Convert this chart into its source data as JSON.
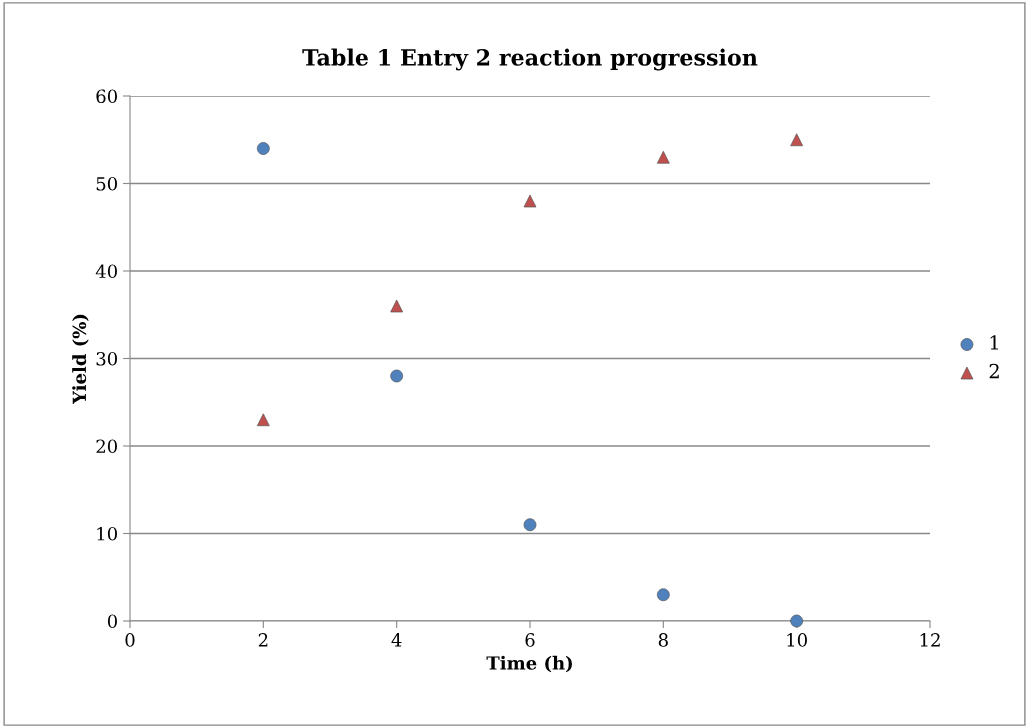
{
  "chart_data": {
    "type": "scatter",
    "title": "Table 1 Entry 2 reaction progression",
    "xlabel": "Time (h)",
    "ylabel": "Yield (%)",
    "series": [
      {
        "name": "1",
        "color": "#4f81bd",
        "marker": "circle",
        "x": [
          2,
          4,
          6,
          8,
          10
        ],
        "values": [
          54,
          28,
          11,
          3,
          0
        ]
      },
      {
        "name": "2",
        "color": "#c0504d",
        "marker": "triangle",
        "x": [
          2,
          4,
          6,
          8,
          10
        ],
        "values": [
          23,
          36,
          48,
          53,
          55
        ]
      }
    ],
    "xlim": [
      0,
      12
    ],
    "xticks": [
      0,
      2,
      4,
      6,
      8,
      10,
      12
    ],
    "ylim": [
      0,
      60
    ],
    "yticks": [
      0,
      10,
      20,
      30,
      40,
      50,
      60
    ],
    "grid": "y",
    "legend": "right"
  }
}
